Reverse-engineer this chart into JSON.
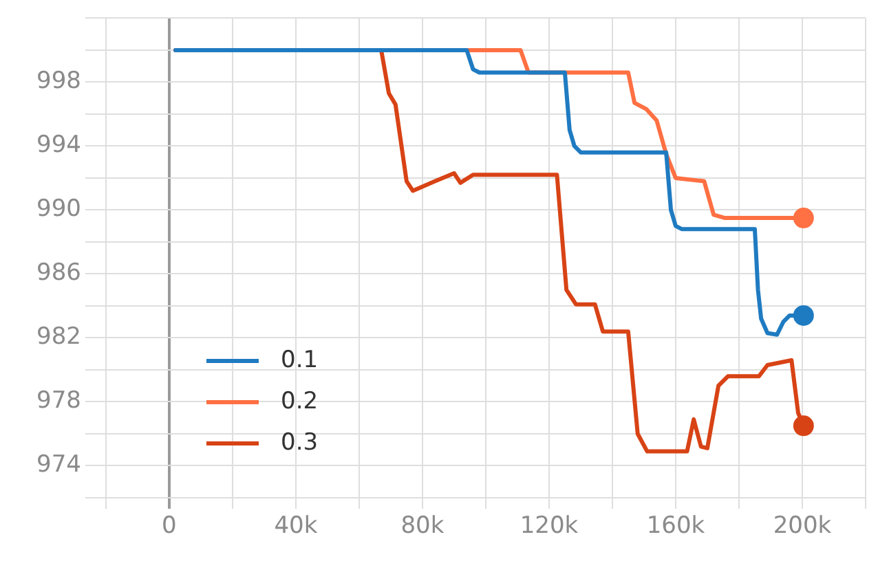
{
  "chart_data": {
    "type": "line",
    "xlim": [
      -23000,
      220000
    ],
    "ylim": [
      972,
      1002
    ],
    "xticks": [
      {
        "value": -20000,
        "label": null
      },
      {
        "value": 0,
        "label": "0"
      },
      {
        "value": 20000,
        "label": null
      },
      {
        "value": 40000,
        "label": "40k"
      },
      {
        "value": 60000,
        "label": null
      },
      {
        "value": 80000,
        "label": "80k"
      },
      {
        "value": 100000,
        "label": null
      },
      {
        "value": 120000,
        "label": "120k"
      },
      {
        "value": 140000,
        "label": null
      },
      {
        "value": 160000,
        "label": "160k"
      },
      {
        "value": 180000,
        "label": null
      },
      {
        "value": 200000,
        "label": "200k"
      },
      {
        "value": 220000,
        "label": null
      }
    ],
    "yticks": [
      {
        "value": 972,
        "label": null
      },
      974,
      {
        "value": 976,
        "label": null
      },
      978,
      {
        "value": 980,
        "label": null
      },
      982,
      {
        "value": 984,
        "label": null
      },
      986,
      {
        "value": 988,
        "label": null
      },
      990,
      {
        "value": 992,
        "label": null
      },
      994,
      {
        "value": 996,
        "label": null
      },
      998,
      {
        "value": 1000,
        "label": null
      },
      {
        "value": 1002,
        "label": null
      }
    ],
    "grid": true,
    "legend": "bottom left",
    "marker": "none",
    "line_style": "solid",
    "series": [
      {
        "name": "0.1",
        "color": "#1f7bc1",
        "x": [
          2000,
          94000,
          96000,
          98000,
          125000,
          126500,
          128000,
          130000,
          157000,
          158500,
          160000,
          162000,
          185000,
          186000,
          187000,
          189000,
          192000,
          194000,
          196000,
          200400
        ],
        "values": [
          1000,
          1000,
          998.8,
          998.6,
          998.6,
          995,
          994,
          993.6,
          993.6,
          990,
          989,
          988.8,
          988.8,
          985,
          983.2,
          982.3,
          982.2,
          983,
          983.4,
          983.4
        ]
      },
      {
        "name": "0.2",
        "color": "#ff7043",
        "x": [
          2000,
          111000,
          113500,
          145000,
          147000,
          150800,
          154000,
          157000,
          160000,
          169000,
          172000,
          175600,
          200400
        ],
        "values": [
          1000,
          1000,
          998.6,
          998.6,
          996.7,
          996.3,
          995.6,
          993.5,
          992,
          991.8,
          989.7,
          989.5,
          989.5
        ]
      },
      {
        "name": "0.3",
        "color": "#d84315",
        "x": [
          2000,
          67000,
          69400,
          71500,
          75000,
          77000,
          84000,
          90000,
          92000,
          96000,
          99000,
          122500,
          125500,
          128500,
          134500,
          137000,
          145000,
          148000,
          151000,
          163600,
          165700,
          168000,
          170000,
          173500,
          176500,
          186300,
          189000,
          196600,
          198700,
          200400
        ],
        "values": [
          1000,
          1000,
          997.3,
          996.6,
          991.8,
          991.2,
          991.8,
          992.3,
          991.7,
          992.2,
          992.2,
          992.2,
          985,
          984.1,
          984.1,
          982.4,
          982.4,
          976,
          974.9,
          974.9,
          976.9,
          975.2,
          975.1,
          979,
          979.6,
          979.6,
          980.3,
          980.6,
          977.3,
          976.5
        ]
      }
    ]
  }
}
